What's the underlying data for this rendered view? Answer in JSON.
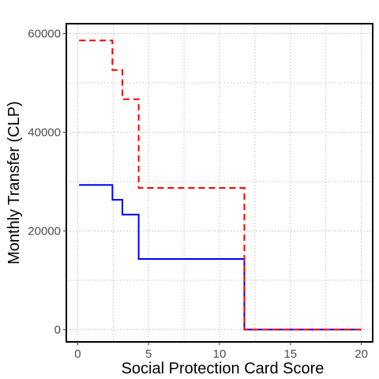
{
  "chart_data": {
    "type": "line",
    "xlabel": "Social Protection Card Score",
    "ylabel": "Monthly Transfer (CLP)",
    "xlim": [
      -0.8,
      20.8
    ],
    "ylim": [
      -2500,
      62000
    ],
    "x_ticks": [
      0,
      5,
      10,
      15,
      20
    ],
    "y_ticks": [
      0,
      20000,
      40000,
      60000
    ],
    "x_minor_grid": [
      2.5,
      7.5,
      12.5,
      17.5
    ],
    "y_minor_grid": [
      10000,
      30000,
      50000
    ],
    "grid": "dotted",
    "legend": "none",
    "series": [
      {
        "color": "#0000ff",
        "dash": "solid",
        "points": [
          [
            0.1,
            29300
          ],
          [
            2.45,
            29300
          ],
          [
            2.45,
            26300
          ],
          [
            3.15,
            26300
          ],
          [
            3.15,
            23300
          ],
          [
            4.3,
            23300
          ],
          [
            4.3,
            14300
          ],
          [
            11.75,
            14300
          ],
          [
            11.75,
            0
          ],
          [
            20.0,
            0
          ]
        ]
      },
      {
        "color": "#ff0000",
        "dash": "dashed",
        "points": [
          [
            0.1,
            58600
          ],
          [
            2.45,
            58600
          ],
          [
            2.45,
            52600
          ],
          [
            3.15,
            52600
          ],
          [
            3.15,
            46700
          ],
          [
            4.3,
            46700
          ],
          [
            4.3,
            28700
          ],
          [
            11.75,
            28700
          ],
          [
            11.75,
            0
          ],
          [
            20.0,
            0
          ]
        ]
      }
    ]
  }
}
